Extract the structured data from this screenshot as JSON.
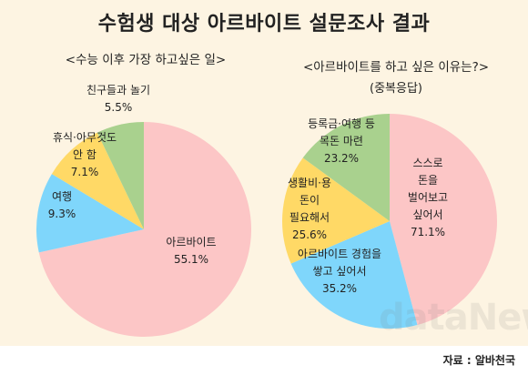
{
  "title": "수험생 대상 아르바이트 설문조사 결과",
  "source": "자료 : 알바천국",
  "watermark": "dataNews",
  "chart_data": [
    {
      "type": "pie",
      "title": "<수능 이후 가장 하고싶은 일>",
      "slices": [
        {
          "label": [
            "아르바이트"
          ],
          "value": 55.1,
          "color": "#fcc6c6"
        },
        {
          "label": [
            "여행"
          ],
          "value": 9.3,
          "color": "#7fd6fb"
        },
        {
          "label": [
            "휴식·아무것도",
            "안 함"
          ],
          "value": 7.1,
          "color": "#ffd966"
        },
        {
          "label": [
            "친구들과 놀기"
          ],
          "value": 5.5,
          "color": "#a9d18e"
        }
      ]
    },
    {
      "type": "pie",
      "title": "<아르바이트를 하고 싶은 이유는?>",
      "subtitle": "(중복응답)",
      "slices": [
        {
          "label": [
            "스스로",
            "돈을",
            "벌어보고",
            "싶어서"
          ],
          "value": 71.1,
          "color": "#fcc6c6"
        },
        {
          "label": [
            "아르바이트 경험을",
            "쌓고 싶어서"
          ],
          "value": 35.2,
          "color": "#7fd6fb"
        },
        {
          "label": [
            "생활비·용",
            "돈이",
            "필요해서"
          ],
          "value": 25.6,
          "color": "#ffd966"
        },
        {
          "label": [
            "등록금·여행 등",
            "목돈 마련"
          ],
          "value": 23.2,
          "color": "#a9d18e"
        }
      ]
    }
  ]
}
